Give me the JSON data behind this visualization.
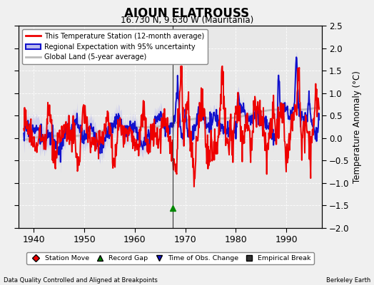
{
  "title": "AIOUN ELATROUSS",
  "subtitle": "16.730 N, 9.630 W (Mauritania)",
  "ylabel": "Temperature Anomaly (°C)",
  "xlabel_left": "Data Quality Controlled and Aligned at Breakpoints",
  "xlabel_right": "Berkeley Earth",
  "xlim": [
    1937,
    1997
  ],
  "ylim": [
    -2.0,
    2.5
  ],
  "yticks": [
    -2.0,
    -1.5,
    -1.0,
    -0.5,
    0.0,
    0.5,
    1.0,
    1.5,
    2.0,
    2.5
  ],
  "xticks": [
    1940,
    1950,
    1960,
    1970,
    1980,
    1990
  ],
  "red_line_color": "#EE0000",
  "blue_line_color": "#1111CC",
  "blue_fill_color": "#BBBBEE",
  "gray_line_color": "#BBBBBB",
  "vline_x": 1967.5,
  "record_gap_x": 1967.5,
  "record_gap_y": -1.56,
  "bg_color": "#E8E8E8",
  "fig_bg_color": "#F0F0F0",
  "figsize": [
    5.24,
    4.0
  ],
  "dpi": 100
}
